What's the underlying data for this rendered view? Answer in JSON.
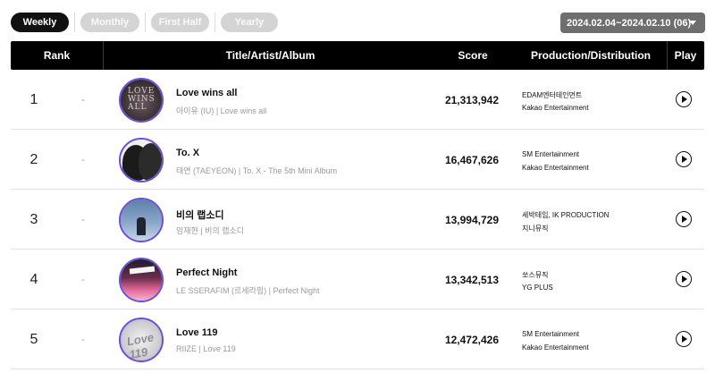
{
  "filters": {
    "weekly": "Weekly",
    "monthly": "Monthly",
    "first_half": "First Half",
    "yearly": "Yearly"
  },
  "date_range": "2024.02.04~2024.02.10 (06)",
  "table_headers": {
    "rank": "Rank",
    "title": "Title/Artist/Album",
    "score": "Score",
    "production": "Production/Distribution",
    "play": "Play"
  },
  "rows": [
    {
      "rank": "1",
      "change": "-",
      "title": "Love wins all",
      "subtitle": "아이유 (IU) | Love wins all",
      "score": "21,313,942",
      "production": "EDAM엔터테인먼트",
      "distribution": "Kakao Entertainment",
      "cover_text": "LOVE WINS ALL"
    },
    {
      "rank": "2",
      "change": "-",
      "title": "To. X",
      "subtitle": "태연 (TAEYEON) | To. X - The 5th Mini Album",
      "score": "16,467,626",
      "production": "SM Entertainment",
      "distribution": "Kakao Entertainment"
    },
    {
      "rank": "3",
      "change": "-",
      "title": "비의 랩소디",
      "subtitle": "임재현 | 비의 랩소디",
      "score": "13,994,729",
      "production": "세박테임, IK PRODUCTION",
      "distribution": "지니뮤직"
    },
    {
      "rank": "4",
      "change": "-",
      "title": "Perfect Night",
      "subtitle": "LE SSERAFIM (르세라핌) | Perfect Night",
      "score": "13,342,513",
      "production": "쏘스뮤직",
      "distribution": "YG PLUS"
    },
    {
      "rank": "5",
      "change": "-",
      "title": "Love 119",
      "subtitle": "RIIZE | Love 119",
      "score": "12,472,426",
      "production": "SM Entertainment",
      "distribution": "Kakao Entertainment",
      "cover_text": "Love 119"
    }
  ],
  "icons": {
    "play": "play-circle-icon",
    "dropdown": "chevron-down-icon"
  },
  "colors": {
    "header_bg": "#000000",
    "active_tab": "#111111",
    "inactive_tab": "#d4d4d4",
    "date_select_bg": "#6e6e6e",
    "cover_border": "#6b4fd6"
  }
}
